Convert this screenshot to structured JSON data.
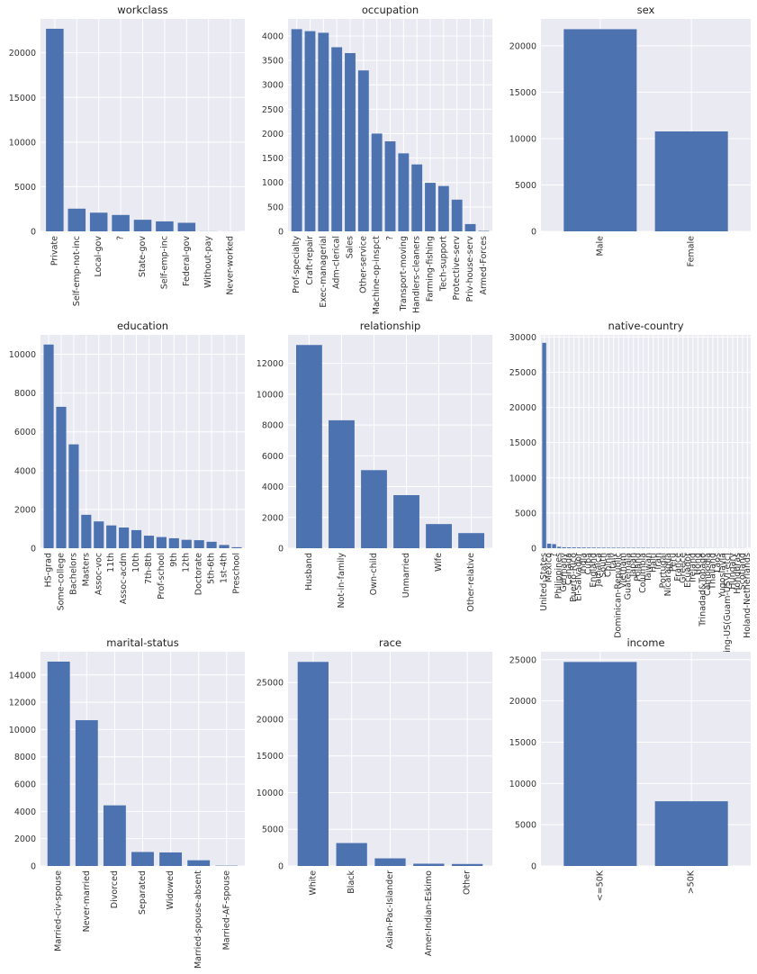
{
  "colors": {
    "bar": "#4c72b0",
    "axes_bg": "#eaeaf2",
    "grid": "#ffffff",
    "text": "#222222"
  },
  "chart_data": [
    {
      "type": "bar",
      "title": "workclass",
      "categories": [
        "Private",
        "Self-emp-not-inc",
        "Local-gov",
        "?",
        "State-gov",
        "Self-emp-inc",
        "Federal-gov",
        "Without-pay",
        "Never-worked"
      ],
      "values": [
        22696,
        2541,
        2093,
        1836,
        1298,
        1116,
        960,
        14,
        7
      ],
      "ylim": [
        0,
        23800
      ],
      "yticks": [
        0,
        5000,
        10000,
        15000,
        20000
      ]
    },
    {
      "type": "bar",
      "title": "occupation",
      "categories": [
        "Prof-specialty",
        "Craft-repair",
        "Exec-managerial",
        "Adm-clerical",
        "Sales",
        "Other-service",
        "Machine-op-inspct",
        "?",
        "Transport-moving",
        "Handlers-cleaners",
        "Farming-fishing",
        "Tech-support",
        "Protective-serv",
        "Priv-house-serv",
        "Armed-Forces"
      ],
      "values": [
        4140,
        4099,
        4066,
        3770,
        3650,
        3295,
        2002,
        1843,
        1597,
        1370,
        994,
        928,
        649,
        149,
        9
      ],
      "ylim": [
        0,
        4350
      ],
      "yticks": [
        0,
        500,
        1000,
        1500,
        2000,
        2500,
        3000,
        3500,
        4000
      ]
    },
    {
      "type": "bar",
      "title": "sex",
      "categories": [
        "Male",
        "Female"
      ],
      "values": [
        21790,
        10771
      ],
      "ylim": [
        0,
        22900
      ],
      "yticks": [
        0,
        5000,
        10000,
        15000,
        20000
      ]
    },
    {
      "type": "bar",
      "title": "education",
      "categories": [
        "HS-grad",
        "Some-college",
        "Bachelors",
        "Masters",
        "Assoc-voc",
        "11th",
        "Assoc-acdm",
        "10th",
        "7th-8th",
        "Prof-school",
        "9th",
        "12th",
        "Doctorate",
        "5th-6th",
        "1st-4th",
        "Preschool"
      ],
      "values": [
        10501,
        7291,
        5355,
        1723,
        1382,
        1175,
        1067,
        933,
        646,
        576,
        514,
        433,
        413,
        333,
        168,
        51
      ],
      "ylim": [
        0,
        11000
      ],
      "yticks": [
        0,
        2000,
        4000,
        6000,
        8000,
        10000
      ]
    },
    {
      "type": "bar",
      "title": "relationship",
      "categories": [
        "Husband",
        "Not-in-family",
        "Own-child",
        "Unmarried",
        "Wife",
        "Other-relative"
      ],
      "values": [
        13193,
        8305,
        5068,
        3446,
        1568,
        981
      ],
      "ylim": [
        0,
        13850
      ],
      "yticks": [
        0,
        2000,
        4000,
        6000,
        8000,
        10000,
        12000
      ]
    },
    {
      "type": "bar",
      "title": "native-country",
      "categories": [
        "United-States",
        "Mexico",
        "?",
        "Philippines",
        "Germany",
        "Canada",
        "Puerto-Rico",
        "El-Salvador",
        "India",
        "Cuba",
        "England",
        "Jamaica",
        "South",
        "China",
        "Italy",
        "Dominican-Republic",
        "Vietnam",
        "Guatemala",
        "Japan",
        "Poland",
        "Columbia",
        "Taiwan",
        "Haiti",
        "Iran",
        "Portugal",
        "Nicaragua",
        "Peru",
        "France",
        "Greece",
        "Ecuador",
        "Ireland",
        "Hong",
        "Trinadad&Tobago",
        "Cambodia",
        "Thailand",
        "Laos",
        "Yugoslavia",
        "Outlying-US(Guam-USVI-etc)",
        "Hungary",
        "Honduras",
        "Scotland",
        "Holand-Netherlands"
      ],
      "values": [
        29170,
        643,
        583,
        198,
        137,
        121,
        114,
        106,
        100,
        95,
        90,
        81,
        80,
        75,
        73,
        70,
        67,
        64,
        62,
        60,
        59,
        51,
        44,
        43,
        37,
        34,
        31,
        29,
        29,
        28,
        24,
        20,
        19,
        19,
        18,
        18,
        16,
        14,
        13,
        13,
        12,
        1
      ],
      "ylim": [
        0,
        30300
      ],
      "yticks": [
        0,
        5000,
        10000,
        15000,
        20000,
        25000,
        30000
      ]
    },
    {
      "type": "bar",
      "title": "marital-status",
      "categories": [
        "Married-civ-spouse",
        "Never-married",
        "Divorced",
        "Separated",
        "Widowed",
        "Married-spouse-absent",
        "Married-AF-spouse"
      ],
      "values": [
        14976,
        10683,
        4443,
        1025,
        993,
        418,
        23
      ],
      "ylim": [
        0,
        15700
      ],
      "yticks": [
        0,
        2000,
        4000,
        6000,
        8000,
        10000,
        12000,
        14000
      ]
    },
    {
      "type": "bar",
      "title": "race",
      "categories": [
        "White",
        "Black",
        "Asian-Pac-Islander",
        "Amer-Indian-Eskimo",
        "Other"
      ],
      "values": [
        27816,
        3124,
        1039,
        311,
        271
      ],
      "ylim": [
        0,
        29200
      ],
      "yticks": [
        0,
        5000,
        10000,
        15000,
        20000,
        25000
      ]
    },
    {
      "type": "bar",
      "title": "income",
      "categories": [
        "<=50K",
        ">50K"
      ],
      "values": [
        24720,
        7841
      ],
      "ylim": [
        0,
        25960
      ],
      "yticks": [
        0,
        5000,
        10000,
        15000,
        20000,
        25000
      ]
    }
  ]
}
